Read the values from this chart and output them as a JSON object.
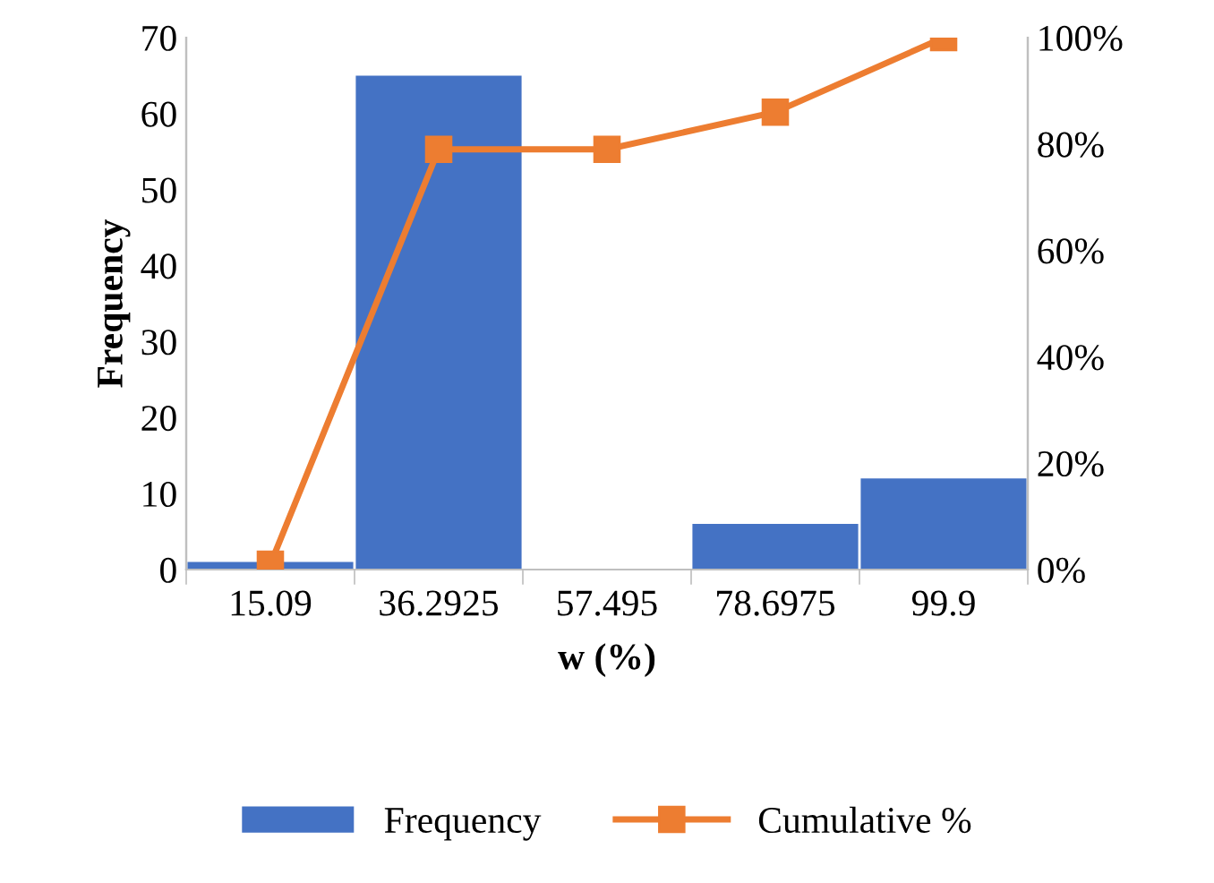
{
  "chart_data": {
    "type": "bar",
    "categories": [
      "15.09",
      "36.2925",
      "57.495",
      "78.6975",
      "99.9"
    ],
    "xlabel": "w (%)",
    "ylabel": "Frequency",
    "ylim": [
      0,
      70
    ],
    "yticks": [
      0,
      10,
      20,
      30,
      40,
      50,
      60,
      70
    ],
    "y2lim": [
      0,
      100
    ],
    "y2ticks": [
      {
        "value": 0,
        "label": "0%"
      },
      {
        "value": 20,
        "label": "20%"
      },
      {
        "value": 40,
        "label": "40%"
      },
      {
        "value": 60,
        "label": "60%"
      },
      {
        "value": 80,
        "label": "80%"
      },
      {
        "value": 100,
        "label": "100%"
      }
    ],
    "series": [
      {
        "name": "Frequency",
        "color": "#4472c4",
        "values": [
          1,
          65,
          0,
          6,
          12
        ]
      },
      {
        "name": "Cumulative %",
        "type": "line",
        "axis": "y2",
        "color": "#ed7d31",
        "marker": "square",
        "values": [
          1,
          79,
          79,
          86,
          100
        ]
      }
    ],
    "grid": false,
    "legend": "bottom"
  }
}
